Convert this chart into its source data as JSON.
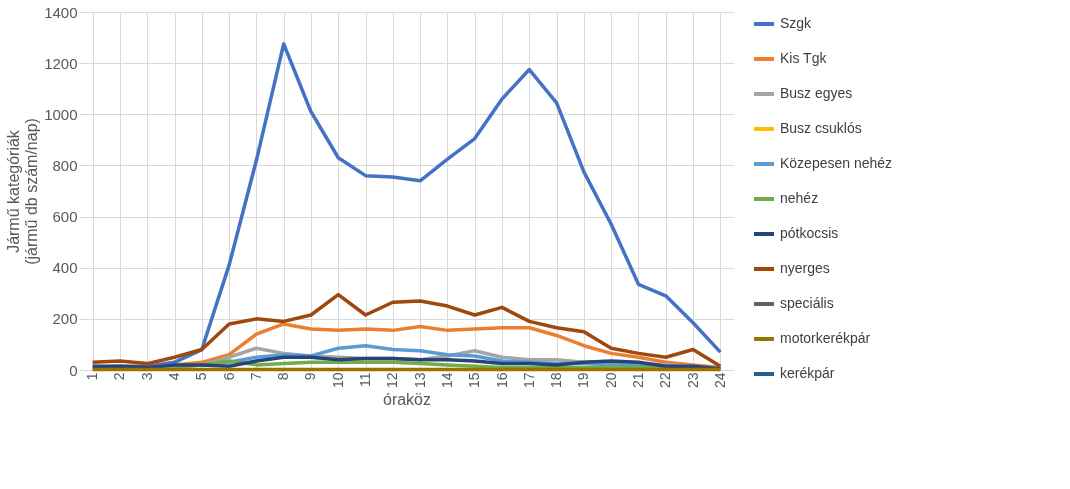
{
  "chart_data": {
    "type": "line",
    "xlabel": "óraköz",
    "ylabel": "Jármű kategóriák\n(jármű db szám/nap)",
    "categories": [
      "1",
      "2",
      "3",
      "4",
      "5",
      "6",
      "7",
      "8",
      "9",
      "10",
      "11",
      "12",
      "13",
      "14",
      "15",
      "16",
      "17",
      "18",
      "19",
      "20",
      "21",
      "22",
      "23",
      "24"
    ],
    "series": [
      {
        "name": "Szgk",
        "color": "#4472c4",
        "values": [
          10,
          15,
          15,
          30,
          80,
          410,
          820,
          1275,
          1010,
          830,
          760,
          755,
          740,
          825,
          905,
          1060,
          1175,
          1045,
          775,
          570,
          335,
          290,
          185,
          70
        ]
      },
      {
        "name": "Kis Tgk",
        "color": "#ed7d31",
        "values": [
          null,
          null,
          10,
          20,
          30,
          60,
          140,
          180,
          160,
          155,
          160,
          155,
          170,
          155,
          160,
          165,
          165,
          135,
          95,
          65,
          50,
          30,
          20,
          10
        ]
      },
      {
        "name": "Busz egyes",
        "color": "#a5a5a5",
        "values": [
          5,
          5,
          5,
          10,
          20,
          50,
          85,
          65,
          55,
          50,
          45,
          45,
          40,
          55,
          75,
          50,
          40,
          40,
          30,
          30,
          25,
          20,
          15,
          5
        ]
      },
      {
        "name": "Busz csuklós",
        "color": "#ffc000",
        "values": [
          null,
          null,
          null,
          null,
          null,
          null,
          null,
          null,
          null,
          null,
          null,
          null,
          null,
          null,
          null,
          null,
          null,
          null,
          null,
          null,
          null,
          null,
          null,
          null
        ]
      },
      {
        "name": "Közepesen nehéz",
        "color": "#5b9bd5",
        "values": [
          null,
          null,
          null,
          null,
          20,
          30,
          50,
          60,
          55,
          85,
          95,
          80,
          75,
          60,
          55,
          35,
          30,
          25,
          25,
          20,
          20,
          15,
          null,
          null
        ]
      },
      {
        "name": "nehéz",
        "color": "#70ad47",
        "values": [
          null,
          null,
          null,
          15,
          20,
          35,
          20,
          25,
          30,
          30,
          30,
          30,
          25,
          20,
          15,
          10,
          10,
          10,
          10,
          10,
          10,
          10,
          5,
          5
        ]
      },
      {
        "name": "pótkocsis",
        "color": "#264478",
        "values": [
          15,
          15,
          10,
          20,
          20,
          15,
          35,
          50,
          50,
          40,
          45,
          45,
          40,
          40,
          35,
          25,
          25,
          20,
          30,
          35,
          30,
          15,
          15,
          5
        ]
      },
      {
        "name": "nyerges",
        "color": "#9e480e",
        "values": [
          30,
          35,
          25,
          50,
          80,
          180,
          200,
          190,
          215,
          295,
          215,
          265,
          270,
          250,
          215,
          245,
          190,
          165,
          150,
          85,
          65,
          50,
          80,
          15
        ]
      },
      {
        "name": "speciális",
        "color": "#636363",
        "values": [
          null,
          null,
          null,
          null,
          null,
          null,
          null,
          null,
          null,
          null,
          null,
          null,
          null,
          null,
          null,
          null,
          null,
          null,
          null,
          null,
          null,
          null,
          null,
          null
        ]
      },
      {
        "name": "motorkerékpár",
        "color": "#997300",
        "values": [
          2,
          2,
          2,
          2,
          2,
          2,
          2,
          2,
          2,
          2,
          2,
          2,
          2,
          2,
          2,
          2,
          2,
          2,
          2,
          2,
          2,
          2,
          2,
          2
        ]
      },
      {
        "name": "kerékpár",
        "color": "#255e91",
        "values": [
          null,
          null,
          null,
          null,
          null,
          null,
          null,
          null,
          null,
          null,
          null,
          null,
          null,
          null,
          null,
          null,
          null,
          null,
          null,
          null,
          null,
          null,
          null,
          null
        ]
      }
    ],
    "ylim": [
      0,
      1400
    ],
    "yticks": [
      0,
      200,
      400,
      600,
      800,
      1000,
      1200,
      1400
    ],
    "grid": true,
    "legend": "right",
    "marker": "none",
    "line_style": "solid"
  }
}
